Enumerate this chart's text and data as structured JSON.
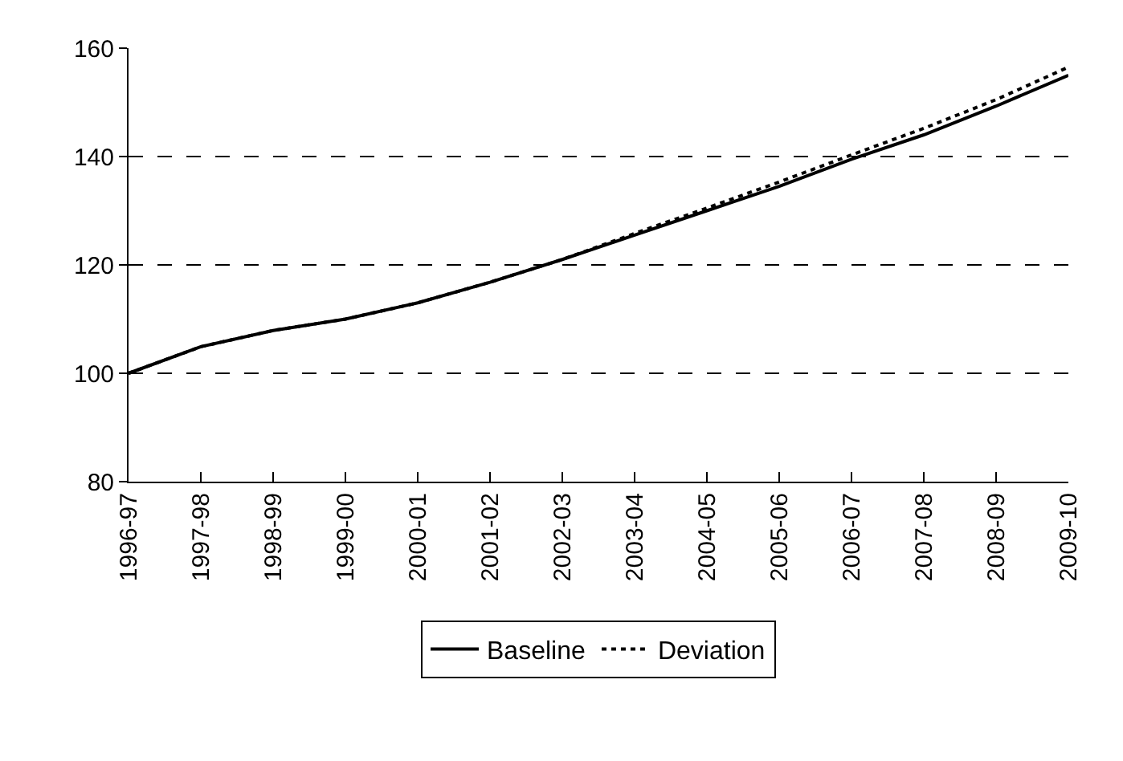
{
  "chart_data": {
    "type": "line",
    "categories": [
      "1996-97",
      "1997-98",
      "1998-99",
      "1999-00",
      "2000-01",
      "2001-02",
      "2002-03",
      "2003-04",
      "2004-05",
      "2005-06",
      "2006-07",
      "2007-08",
      "2008-09",
      "2009-10"
    ],
    "series": [
      {
        "name": "Baseline",
        "color": "#000000",
        "line_style": "solid",
        "values": [
          100,
          104.9,
          107.9,
          110,
          113,
          116.8,
          121,
          125.5,
          130,
          134.5,
          139.5,
          144,
          149.3,
          155
        ]
      },
      {
        "name": "Deviation",
        "color": "#000000",
        "line_style": "dotted",
        "values": [
          100,
          104.9,
          107.9,
          110,
          113,
          116.8,
          121,
          125.8,
          130.5,
          135.3,
          140.3,
          145.2,
          150.5,
          156.5
        ]
      }
    ],
    "ylim": [
      80,
      160
    ],
    "yticks": [
      80,
      100,
      120,
      140,
      160
    ],
    "grid": "y",
    "legend": "bottom",
    "marker": "none"
  }
}
